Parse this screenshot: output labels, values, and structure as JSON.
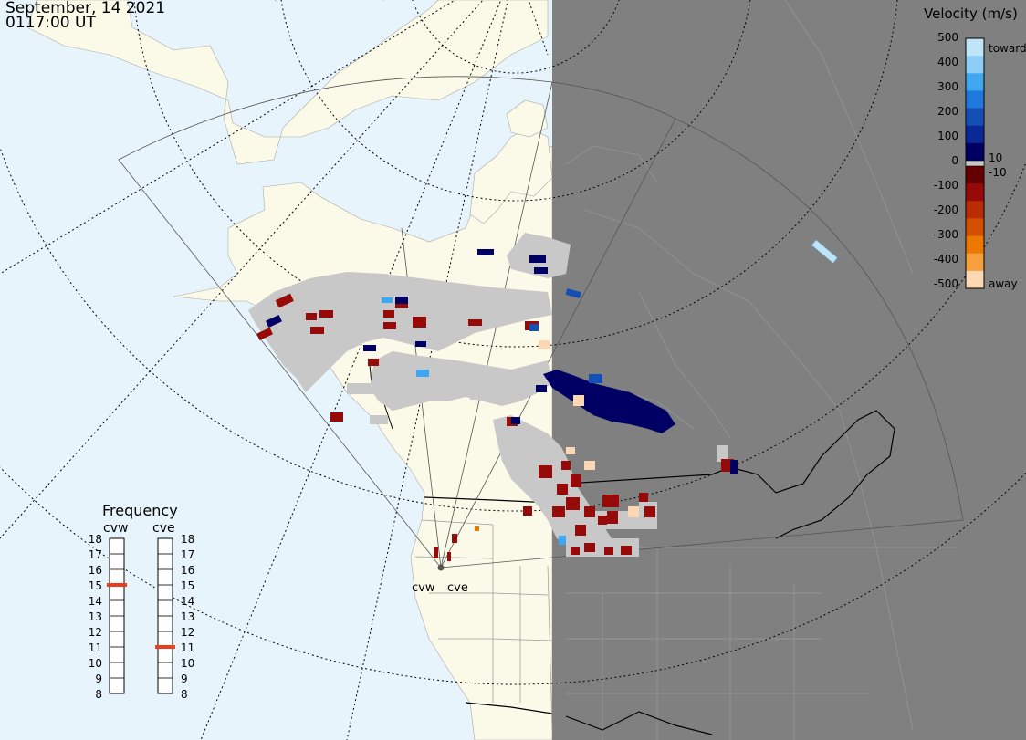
{
  "header": {
    "date": "September, 14 2021",
    "time": "0117:00 UT"
  },
  "velocity_scale": {
    "title": "Velocity (m/s)",
    "ticks": [
      "500",
      "400",
      "300",
      "200",
      "100",
      "0",
      "-100",
      "-200",
      "-300",
      "-400",
      "-500"
    ],
    "labels": {
      "toward": "toward",
      "away": "away",
      "pos_threshold": "10",
      "neg_threshold": "-10"
    },
    "colors": [
      "#bfe4f7",
      "#8ccef5",
      "#3fa6f0",
      "#1f78dc",
      "#1450b4",
      "#0a2896",
      "#000064",
      "#640000",
      "#960a0a",
      "#b92d05",
      "#d25000",
      "#eb7800",
      "#f5a03c",
      "#fcd7b4"
    ]
  },
  "frequency": {
    "title": "Frequency",
    "radars": [
      {
        "name": "cvw",
        "value": 15
      },
      {
        "name": "cve",
        "value": 11
      }
    ],
    "ticks": [
      "18",
      "17",
      "16",
      "15",
      "14",
      "13",
      "12",
      "11",
      "10",
      "9",
      "8"
    ]
  },
  "radar_sites": [
    "cvw",
    "cve"
  ],
  "colors": {
    "ocean": "#e8f4fb",
    "land": "#fbf9e8",
    "night": "#808080",
    "ground_scatter": "#c8c8c8",
    "freq_marker": "#e8401c"
  }
}
